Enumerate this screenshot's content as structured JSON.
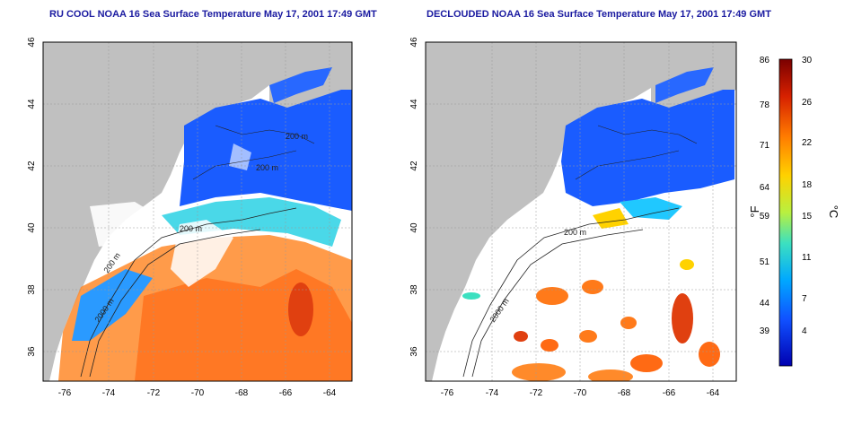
{
  "panels": [
    {
      "title": "RU COOL NOAA 16 Sea Surface Temperature May 17, 2001 17:49 GMT"
    },
    {
      "title": "DECLOUDED NOAA 16 Sea Surface Temperature May 17, 2001 17:49 GMT"
    }
  ],
  "axes": {
    "x_ticks": [
      "-76",
      "-74",
      "-72",
      "-70",
      "-68",
      "-66",
      "-64"
    ],
    "y_ticks": [
      "46",
      "44",
      "42",
      "40",
      "38",
      "36"
    ]
  },
  "contour_labels": [
    "200 m",
    "200 m",
    "200 m",
    "200 m",
    "2000 m",
    "200 m",
    "2000 m"
  ],
  "colorbar": {
    "fahrenheit_ticks": [
      "86",
      "78",
      "71",
      "64",
      "59",
      "51",
      "44",
      "39"
    ],
    "celsius_ticks": [
      "30",
      "26",
      "22",
      "18",
      "15",
      "11",
      "7",
      "4"
    ],
    "fahrenheit_unit": "°F",
    "celsius_unit": "°C",
    "colors": [
      "#7a0000",
      "#d62000",
      "#ff7a00",
      "#ffd200",
      "#b8f040",
      "#3ce0c0",
      "#00a8ff",
      "#1050ff",
      "#0000b0"
    ]
  },
  "colors": {
    "land": "#c0c0c0",
    "cold": "#1a5cff",
    "warm": "#ff7a1a",
    "title": "#1a1aa0"
  }
}
